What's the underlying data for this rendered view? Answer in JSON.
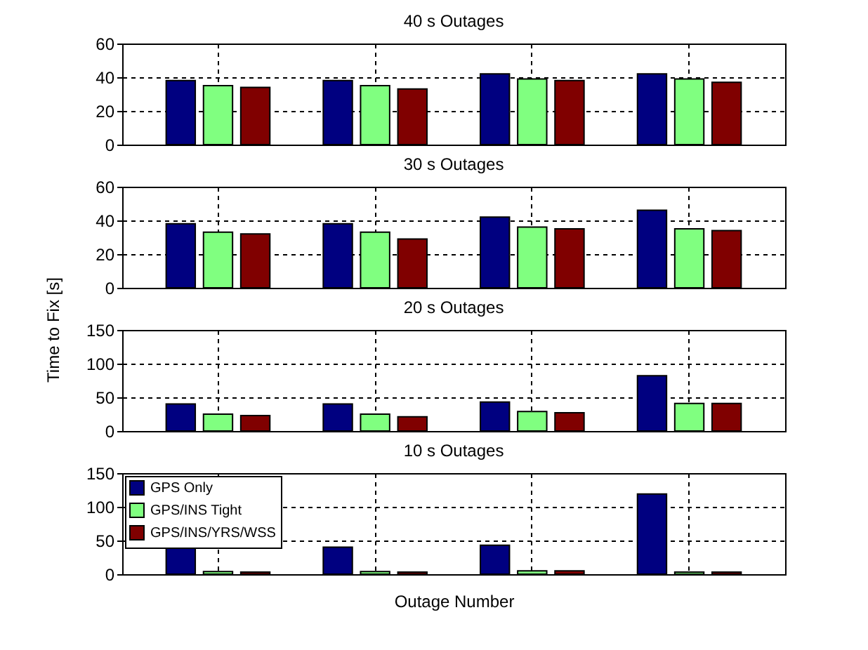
{
  "chart_data": [
    {
      "type": "bar",
      "title": "40 s Outages",
      "categories": [
        null,
        null,
        null,
        null
      ],
      "ylim": [
        0,
        60
      ],
      "yticks": [
        0,
        20,
        40,
        60
      ],
      "grid": true,
      "legend": false,
      "series": [
        {
          "color": "#000080",
          "values": [
            38,
            38,
            42,
            42
          ]
        },
        {
          "color": "#80ff80",
          "values": [
            35,
            35,
            39,
            39
          ]
        },
        {
          "color": "#800000",
          "values": [
            34,
            33,
            38,
            37
          ]
        }
      ]
    },
    {
      "type": "bar",
      "title": "30 s Outages",
      "ylabel": "Time to Fix [s]",
      "categories": [
        null,
        null,
        null,
        null
      ],
      "ylim": [
        0,
        60
      ],
      "yticks": [
        0,
        20,
        40,
        60
      ],
      "grid": true,
      "legend": false,
      "series": [
        {
          "color": "#000080",
          "values": [
            38,
            38,
            42,
            46
          ]
        },
        {
          "color": "#80ff80",
          "values": [
            33,
            33,
            36,
            35
          ]
        },
        {
          "color": "#800000",
          "values": [
            32,
            29,
            35,
            34
          ]
        }
      ]
    },
    {
      "type": "bar",
      "title": "20 s Outages",
      "categories": [
        null,
        null,
        null,
        null
      ],
      "ylim": [
        0,
        150
      ],
      "yticks": [
        0,
        50,
        100,
        150
      ],
      "grid": true,
      "legend": false,
      "series": [
        {
          "color": "#000080",
          "values": [
            40,
            40,
            43,
            82
          ]
        },
        {
          "color": "#80ff80",
          "values": [
            25,
            25,
            29,
            41
          ]
        },
        {
          "color": "#800000",
          "values": [
            23,
            21,
            27,
            41
          ]
        }
      ]
    },
    {
      "type": "bar",
      "title": "10 s Outages",
      "xlabel": "Outage Number",
      "categories": [
        null,
        null,
        null,
        null
      ],
      "ylim": [
        0,
        150
      ],
      "yticks": [
        0,
        50,
        100,
        150
      ],
      "grid": true,
      "legend": "top left",
      "series": [
        {
          "name": "GPS Only",
          "color": "#000080",
          "values": [
            40,
            40,
            43,
            119
          ]
        },
        {
          "name": "GPS/INS Tight",
          "color": "#80ff80",
          "values": [
            4,
            4,
            5,
            3
          ]
        },
        {
          "name": "GPS/INS/YRS/WSS",
          "color": "#800000",
          "values": [
            3,
            3,
            5,
            3
          ]
        }
      ]
    }
  ]
}
